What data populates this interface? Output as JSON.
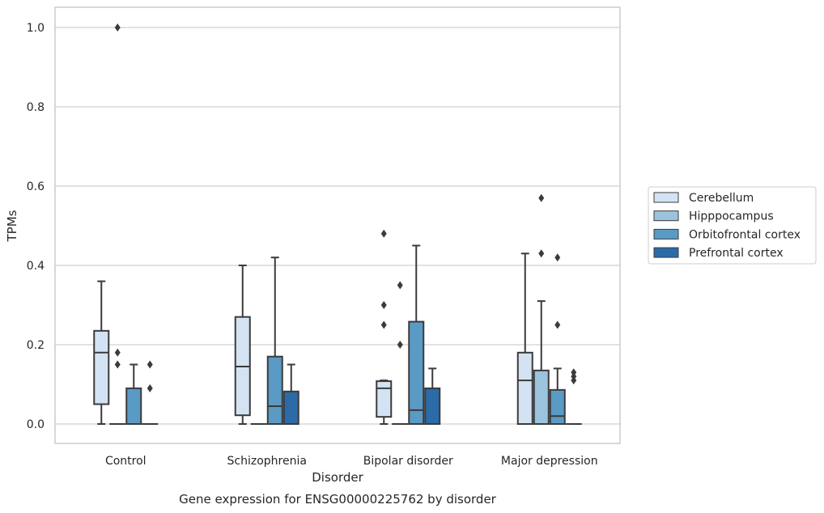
{
  "chart_data": {
    "type": "box",
    "title": "",
    "caption": "Gene expression for ENSG00000225762 by disorder",
    "xlabel": "Disorder",
    "ylabel": "TPMs",
    "ylim": [
      -0.048,
      1.05
    ],
    "yticks": [
      0.0,
      0.2,
      0.4,
      0.6,
      0.8,
      1.0
    ],
    "ytick_labels": [
      "0.0",
      "0.2",
      "0.4",
      "0.6",
      "0.8",
      "1.0"
    ],
    "grid": "horizontal",
    "legend_position": "right",
    "categories": [
      "Control",
      "Schizophrenia",
      "Bipolar disorder",
      "Major depression"
    ],
    "series": [
      {
        "name": "Cerebellum",
        "color": "#d4e3f3",
        "boxes": [
          {
            "whisker_low": 0.0,
            "q1": 0.05,
            "median": 0.18,
            "q3": 0.235,
            "whisker_high": 0.36,
            "outliers": []
          },
          {
            "whisker_low": 0.0,
            "q1": 0.022,
            "median": 0.145,
            "q3": 0.27,
            "whisker_high": 0.4,
            "outliers": []
          },
          {
            "whisker_low": 0.0,
            "q1": 0.018,
            "median": 0.09,
            "q3": 0.108,
            "whisker_high": 0.11,
            "outliers": [
              0.25,
              0.3,
              0.48
            ]
          },
          {
            "whisker_low": 0.0,
            "q1": 0.0,
            "median": 0.11,
            "q3": 0.18,
            "whisker_high": 0.43,
            "outliers": []
          }
        ]
      },
      {
        "name": "Hipppocampus",
        "color": "#9bc3de",
        "boxes": [
          {
            "whisker_low": 0.0,
            "q1": 0.0,
            "median": 0.0,
            "q3": 0.0,
            "whisker_high": 0.0,
            "outliers": [
              0.15,
              0.18,
              1.0
            ]
          },
          {
            "whisker_low": 0.0,
            "q1": 0.0,
            "median": 0.0,
            "q3": 0.0,
            "whisker_high": 0.0,
            "outliers": []
          },
          {
            "whisker_low": 0.0,
            "q1": 0.0,
            "median": 0.0,
            "q3": 0.0,
            "whisker_high": 0.0,
            "outliers": [
              0.2,
              0.35
            ]
          },
          {
            "whisker_low": 0.0,
            "q1": 0.0,
            "median": 0.0,
            "q3": 0.135,
            "whisker_high": 0.31,
            "outliers": [
              0.43,
              0.57
            ]
          }
        ]
      },
      {
        "name": "Orbitofrontal cortex",
        "color": "#5a9bc6",
        "boxes": [
          {
            "whisker_low": 0.0,
            "q1": 0.0,
            "median": 0.0,
            "q3": 0.09,
            "whisker_high": 0.15,
            "outliers": []
          },
          {
            "whisker_low": 0.0,
            "q1": 0.0,
            "median": 0.045,
            "q3": 0.17,
            "whisker_high": 0.42,
            "outliers": []
          },
          {
            "whisker_low": 0.0,
            "q1": 0.0,
            "median": 0.035,
            "q3": 0.258,
            "whisker_high": 0.45,
            "outliers": []
          },
          {
            "whisker_low": 0.0,
            "q1": 0.0,
            "median": 0.02,
            "q3": 0.086,
            "whisker_high": 0.14,
            "outliers": [
              0.25,
              0.42
            ]
          }
        ]
      },
      {
        "name": "Prefrontal cortex",
        "color": "#2b6ba8",
        "boxes": [
          {
            "whisker_low": 0.0,
            "q1": 0.0,
            "median": 0.0,
            "q3": 0.0,
            "whisker_high": 0.0,
            "outliers": [
              0.09,
              0.15
            ]
          },
          {
            "whisker_low": 0.0,
            "q1": 0.0,
            "median": 0.0,
            "q3": 0.082,
            "whisker_high": 0.15,
            "outliers": []
          },
          {
            "whisker_low": 0.0,
            "q1": 0.0,
            "median": 0.0,
            "q3": 0.09,
            "whisker_high": 0.14,
            "outliers": []
          },
          {
            "whisker_low": 0.0,
            "q1": 0.0,
            "median": 0.0,
            "q3": 0.0,
            "whisker_high": 0.0,
            "outliers": [
              0.11,
              0.12,
              0.13
            ]
          }
        ]
      }
    ]
  }
}
